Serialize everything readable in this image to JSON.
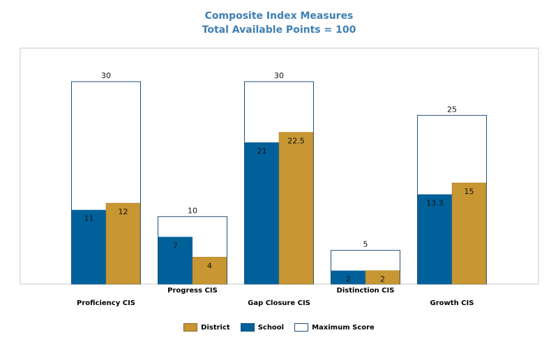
{
  "chart_data": {
    "type": "bar",
    "title": "Composite Index Measures",
    "subtitle": "Total Available Points = 100",
    "categories": [
      "Proficiency CIS",
      "Progress CIS",
      "Gap Closure CIS",
      "Distinction CIS",
      "Growth CIS"
    ],
    "series": [
      {
        "name": "Maximum Score",
        "values": [
          30,
          10,
          30,
          5,
          25
        ],
        "color": "#ffffff",
        "stroke": "#1f4e79"
      },
      {
        "name": "School",
        "values": [
          11,
          7,
          21,
          2,
          13.3
        ],
        "color": "#00619a"
      },
      {
        "name": "District",
        "values": [
          12,
          4,
          22.5,
          2,
          15
        ],
        "color": "#c89632"
      }
    ],
    "ylim": [
      0,
      30
    ],
    "grid": false,
    "legend_position": "bottom"
  },
  "legend": [
    {
      "label": "District",
      "color": "#c89632"
    },
    {
      "label": "School",
      "color": "#00619a"
    },
    {
      "label": "Maximum Score",
      "color": "#ffffff"
    }
  ]
}
